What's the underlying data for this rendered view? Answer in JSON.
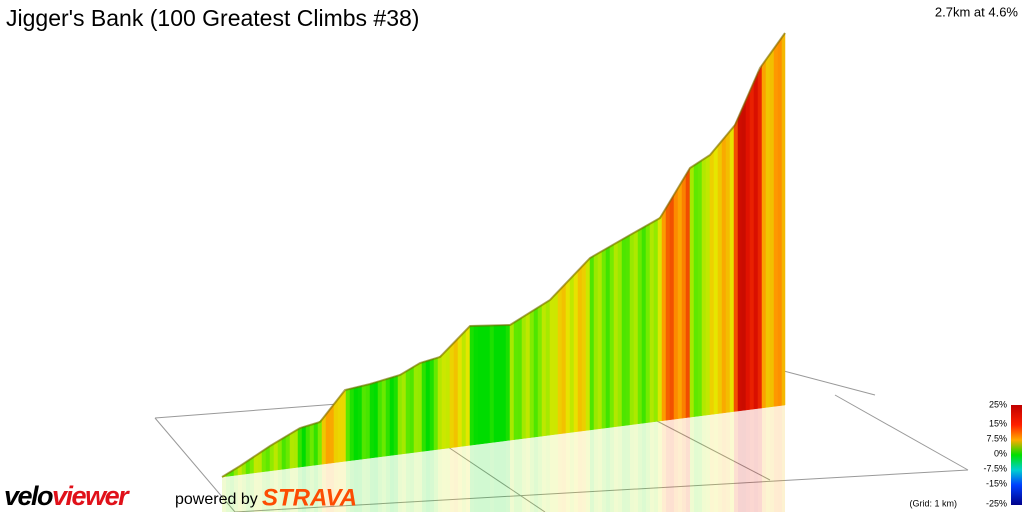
{
  "title": "Jigger's Bank (100 Greatest Climbs #38)",
  "summary": "2.7km at 4.6%",
  "legend": {
    "labels": [
      "25%",
      "15%",
      "7.5%",
      "0%",
      "-7.5%",
      "-15%",
      "-25%"
    ],
    "note": "(Grid: 1 km)"
  },
  "branding": {
    "velo": "velo",
    "viewer": "viewer",
    "powered": "powered by",
    "strava": "STRAVA"
  }
}
